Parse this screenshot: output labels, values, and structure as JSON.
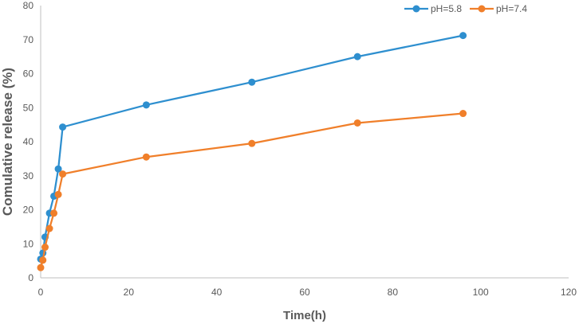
{
  "chart_data": {
    "type": "line",
    "title": "",
    "xlabel": "Time(h)",
    "ylabel": "Comulative release (%)",
    "xlim": [
      0,
      120
    ],
    "ylim": [
      0,
      80
    ],
    "x_ticks": [
      0,
      20,
      40,
      60,
      80,
      100,
      120
    ],
    "y_ticks": [
      0,
      10,
      20,
      30,
      40,
      50,
      60,
      70,
      80
    ],
    "grid": false,
    "legend_position": "top-right",
    "series": [
      {
        "name": "pH=5.8",
        "color": "#2e8fcf",
        "x": [
          0,
          0.5,
          1,
          2,
          3,
          4,
          5,
          24,
          48,
          72,
          96
        ],
        "y": [
          5.5,
          7.3,
          12,
          19,
          24,
          32,
          44.3,
          50.8,
          57.5,
          65,
          71.2
        ]
      },
      {
        "name": "pH=7.4",
        "color": "#f07f2a",
        "x": [
          0,
          0.5,
          1,
          2,
          3,
          4,
          5,
          24,
          48,
          72,
          96
        ],
        "y": [
          3,
          5.2,
          9,
          14.5,
          19,
          24.5,
          30.5,
          35.5,
          39.5,
          45.5,
          48.3
        ]
      }
    ]
  }
}
